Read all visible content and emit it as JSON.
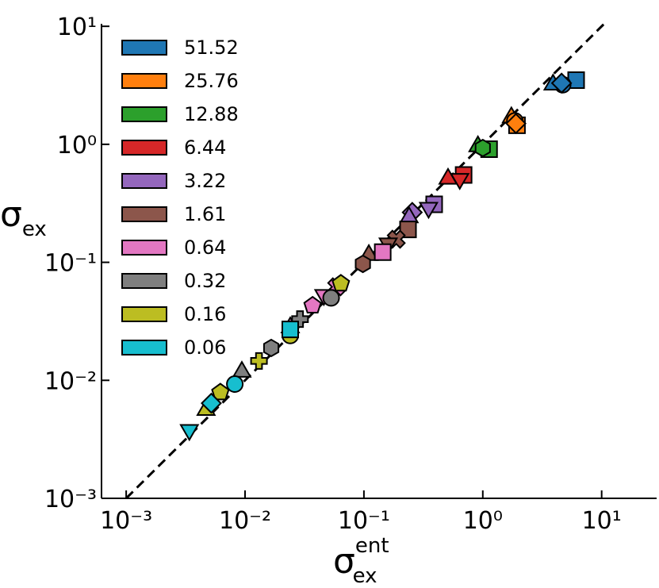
{
  "chart_data": {
    "type": "scatter",
    "xlabel": {
      "symbol": "σ",
      "sub": "ex",
      "sup": "ent"
    },
    "ylabel": {
      "symbol": "σ",
      "sub": "ex"
    },
    "xscale": "log",
    "yscale": "log",
    "xlim": [
      0.00062,
      29
    ],
    "ylim": [
      0.001,
      10.5
    ],
    "xticks": [
      {
        "value": 0.001,
        "label": "10⁻³"
      },
      {
        "value": 0.01,
        "label": "10⁻²"
      },
      {
        "value": 0.1,
        "label": "10⁻¹"
      },
      {
        "value": 1,
        "label": "10⁰"
      },
      {
        "value": 10,
        "label": "10¹"
      }
    ],
    "yticks": [
      {
        "value": 0.001,
        "label": "10⁻³"
      },
      {
        "value": 0.01,
        "label": "10⁻²"
      },
      {
        "value": 0.1,
        "label": "10⁻¹"
      },
      {
        "value": 1,
        "label": "10⁰"
      },
      {
        "value": 10,
        "label": "10¹"
      }
    ],
    "reference_line": "dashed",
    "legend": "upper left",
    "series": [
      {
        "name": "51.52",
        "color": "#1f77b4",
        "x": [
          6.1,
          4.7,
          3.9,
          4.6
        ],
        "values": [
          3.5,
          3.2,
          3.2,
          3.3
        ],
        "markers": [
          "s",
          "o",
          "^",
          "D"
        ]
      },
      {
        "name": "25.76",
        "color": "#ff7f0e",
        "x": [
          1.94,
          1.74,
          1.86,
          1.9
        ],
        "values": [
          1.45,
          1.69,
          1.58,
          1.5
        ],
        "markers": [
          "s",
          "^",
          "o",
          "D"
        ]
      },
      {
        "name": "12.88",
        "color": "#2ca02c",
        "x": [
          1.13,
          0.91,
          1.0
        ],
        "values": [
          0.91,
          0.96,
          0.93
        ],
        "markers": [
          "s",
          "^",
          "h"
        ]
      },
      {
        "name": "6.44",
        "color": "#d62728",
        "x": [
          0.69,
          0.51,
          0.64
        ],
        "values": [
          0.55,
          0.51,
          0.51
        ],
        "markers": [
          "s",
          "^",
          "v"
        ]
      },
      {
        "name": "3.22",
        "color": "#9467bd",
        "x": [
          0.39,
          0.35,
          0.255,
          0.24
        ],
        "values": [
          0.31,
          0.29,
          0.265,
          0.24
        ],
        "markers": [
          "s",
          "v",
          "D",
          "^"
        ]
      },
      {
        "name": "1.61",
        "color": "#8c564b",
        "x": [
          0.235,
          0.187,
          0.16,
          0.11,
          0.098
        ],
        "values": [
          0.19,
          0.157,
          0.145,
          0.115,
          0.097
        ],
        "markers": [
          "s",
          "X",
          "v",
          "^",
          "h"
        ]
      },
      {
        "name": "0.64",
        "color": "#e377c2",
        "x": [
          0.144,
          0.059,
          0.046,
          0.037,
          0.024
        ],
        "values": [
          0.122,
          0.062,
          0.053,
          0.043,
          0.028
        ],
        "markers": [
          "s",
          "X",
          "v",
          "p",
          "^"
        ]
      },
      {
        "name": "0.32",
        "color": "#7f7f7f",
        "x": [
          0.053,
          0.029,
          0.0166,
          0.0094
        ],
        "values": [
          0.05,
          0.033,
          0.0188,
          0.0118
        ],
        "markers": [
          "o",
          "P",
          "h",
          "^"
        ]
      },
      {
        "name": "0.16",
        "color": "#bcbd22",
        "x": [
          0.064,
          0.024,
          0.0131,
          0.0062,
          0.0047
        ],
        "values": [
          0.066,
          0.024,
          0.0146,
          0.0079,
          0.0056
        ],
        "markers": [
          "p",
          "o",
          "P",
          "p",
          "^"
        ]
      },
      {
        "name": "0.06",
        "color": "#17becf",
        "x": [
          0.024,
          0.0082,
          0.0034,
          0.0052
        ],
        "values": [
          0.027,
          0.0093,
          0.0038,
          0.0064
        ],
        "markers": [
          "s",
          "o",
          "v",
          "D"
        ]
      }
    ]
  }
}
